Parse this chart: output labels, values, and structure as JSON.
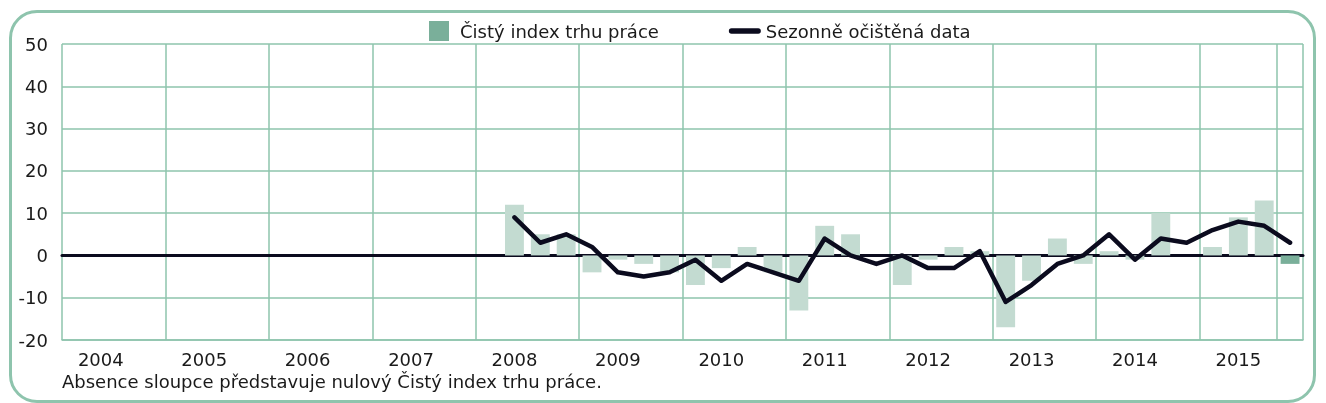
{
  "chart_data": {
    "type": "bar",
    "categories": [
      null,
      "2004",
      null,
      null,
      null,
      "2005",
      null,
      null,
      null,
      "2006",
      null,
      null,
      null,
      "2007",
      null,
      null,
      null,
      "2008",
      null,
      null,
      null,
      "2009",
      null,
      null,
      null,
      "2010",
      null,
      null,
      null,
      "2011",
      null,
      null,
      null,
      "2012",
      null,
      null,
      null,
      "2013",
      null,
      null,
      null,
      "2014",
      null,
      null,
      null,
      "2015",
      null,
      null
    ],
    "series": [
      {
        "name": "Čistý index trhu práce",
        "color": "#7aaf9a",
        "colors": [
          null,
          null,
          null,
          null,
          null,
          null,
          null,
          null,
          null,
          null,
          null,
          null,
          null,
          null,
          null,
          null,
          null,
          "#c3dbd1",
          "#c3dbd1",
          "#c3dbd1",
          "#c3dbd1",
          "#c3dbd1",
          "#c3dbd1",
          "#c3dbd1",
          "#c3dbd1",
          "#c3dbd1",
          "#c3dbd1",
          "#c3dbd1",
          "#c3dbd1",
          "#c3dbd1",
          "#c3dbd1",
          "#c3dbd1",
          "#c3dbd1",
          "#c3dbd1",
          "#c3dbd1",
          "#c3dbd1",
          "#c3dbd1",
          "#c3dbd1",
          "#c3dbd1",
          "#c3dbd1",
          "#c3dbd1",
          "#c3dbd1",
          "#c3dbd1",
          "#c3dbd1",
          "#c3dbd1",
          "#c3dbd1",
          "#c3dbd1",
          "#7aaf9a"
        ],
        "values": [
          null,
          null,
          null,
          null,
          null,
          null,
          null,
          null,
          null,
          null,
          null,
          null,
          null,
          null,
          null,
          null,
          null,
          12,
          5,
          5,
          -4,
          -1,
          -2,
          -4,
          -7,
          -3,
          2,
          -4,
          -13,
          7,
          5,
          0,
          -7,
          -1,
          2,
          1,
          -17,
          -6,
          4,
          -2,
          1,
          -1,
          10,
          0,
          2,
          9,
          13,
          -2
        ]
      },
      {
        "name": "Sezonně očištěná data",
        "type": "line",
        "color": "#0b0b1e",
        "values": [
          null,
          null,
          null,
          null,
          null,
          null,
          null,
          null,
          null,
          null,
          null,
          null,
          null,
          null,
          null,
          null,
          null,
          9,
          3,
          5,
          2,
          -4,
          -5,
          -4,
          -1,
          -6,
          -2,
          -4,
          -6,
          4,
          0,
          -2,
          0,
          -3,
          -3,
          1,
          -11,
          -7,
          -2,
          0,
          5,
          -1,
          4,
          3,
          6,
          8,
          7,
          3
        ]
      }
    ],
    "ylim": [
      -20,
      50
    ],
    "yticks": [
      -20,
      -10,
      0,
      10,
      20,
      30,
      40,
      50
    ],
    "grid": true,
    "legend": "top",
    "line_style": "solid",
    "annotations": [
      "Absence sloupce představuje nulový Čistý index trhu práce."
    ]
  }
}
